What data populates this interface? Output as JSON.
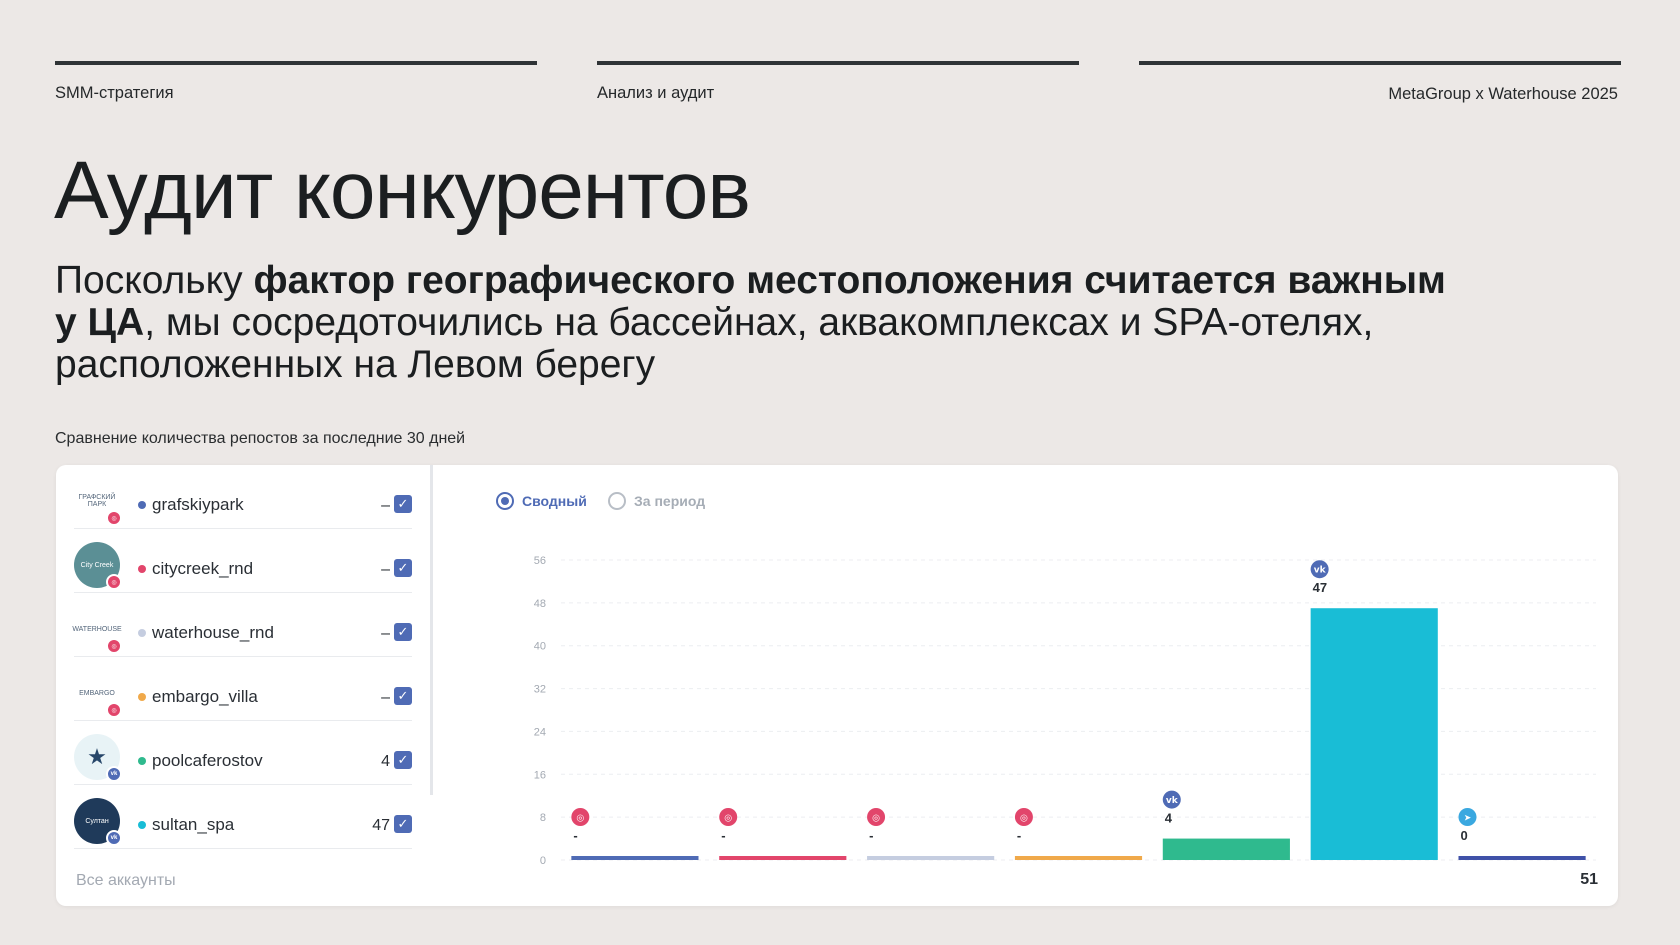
{
  "header": {
    "left": "SMM-стратегия",
    "center": "Анализ и аудит",
    "right": "MetaGroup x Waterhouse 2025"
  },
  "title": "Аудит конкурентов",
  "subtitle": {
    "part1": "Поскольку ",
    "bold": "фактор географического местоположения считается важным у ЦА",
    "part2": ", мы сосредоточились на бассейнах, аквакомплексах и SPA-отелях, расположенных на Левом берегу"
  },
  "caption": "Сравнение количества репостов за последние 30 дней",
  "accounts": [
    {
      "name": "grafskiypark",
      "value": "–",
      "color": "#4f6bb5",
      "network": "instagram-icon",
      "avatar_text": "ГРАФСКИЙ ПАРК"
    },
    {
      "name": "citycreek_rnd",
      "value": "–",
      "color": "#e2456b",
      "network": "instagram-icon",
      "avatar_text": "City Creek"
    },
    {
      "name": "waterhouse_rnd",
      "value": "–",
      "color": "#c5cde0",
      "network": "instagram-icon",
      "avatar_text": "WATERHOUSE"
    },
    {
      "name": "embargo_villa",
      "value": "–",
      "color": "#f0a94a",
      "network": "instagram-icon",
      "avatar_text": "EMBARGO"
    },
    {
      "name": "poolcaferostov",
      "value": "4",
      "color": "#2fba8e",
      "network": "vk-icon",
      "avatar_text": "★"
    },
    {
      "name": "sultan_spa",
      "value": "47",
      "color": "#19bdd6",
      "network": "vk-icon",
      "avatar_text": "Султан"
    }
  ],
  "all_accounts": {
    "label": "Все аккаунты",
    "value": "51"
  },
  "view_toggle": {
    "summary": "Сводный",
    "period": "За период"
  },
  "colors": {
    "accent": "#4f6bb5",
    "instagram": "#e2456b",
    "vk": "#4f6bb5",
    "telegram": "#3aa8e0"
  },
  "chart_data": {
    "type": "bar",
    "y_ticks": [
      0,
      8,
      16,
      24,
      32,
      40,
      48,
      56
    ],
    "ylim": [
      0,
      56
    ],
    "bars": [
      {
        "account": "grafskiypark",
        "value": 0,
        "label": "-",
        "network": "instagram",
        "color": "#4f6bb5"
      },
      {
        "account": "citycreek_rnd",
        "value": 0,
        "label": "-",
        "network": "instagram",
        "color": "#e2456b"
      },
      {
        "account": "waterhouse_rnd",
        "value": 0,
        "label": "-",
        "network": "instagram",
        "color": "#c5cde0"
      },
      {
        "account": "embargo_villa",
        "value": 0,
        "label": "-",
        "network": "instagram",
        "color": "#f0a94a"
      },
      {
        "account": "poolcaferostov",
        "value": 4,
        "label": "4",
        "network": "vk",
        "color": "#2fba8e"
      },
      {
        "account": "sultan_spa",
        "value": 47,
        "label": "47",
        "network": "vk",
        "color": "#19bdd6"
      },
      {
        "account": "",
        "value": 0,
        "label": "0",
        "network": "telegram",
        "color": "#3f51a8"
      }
    ]
  }
}
